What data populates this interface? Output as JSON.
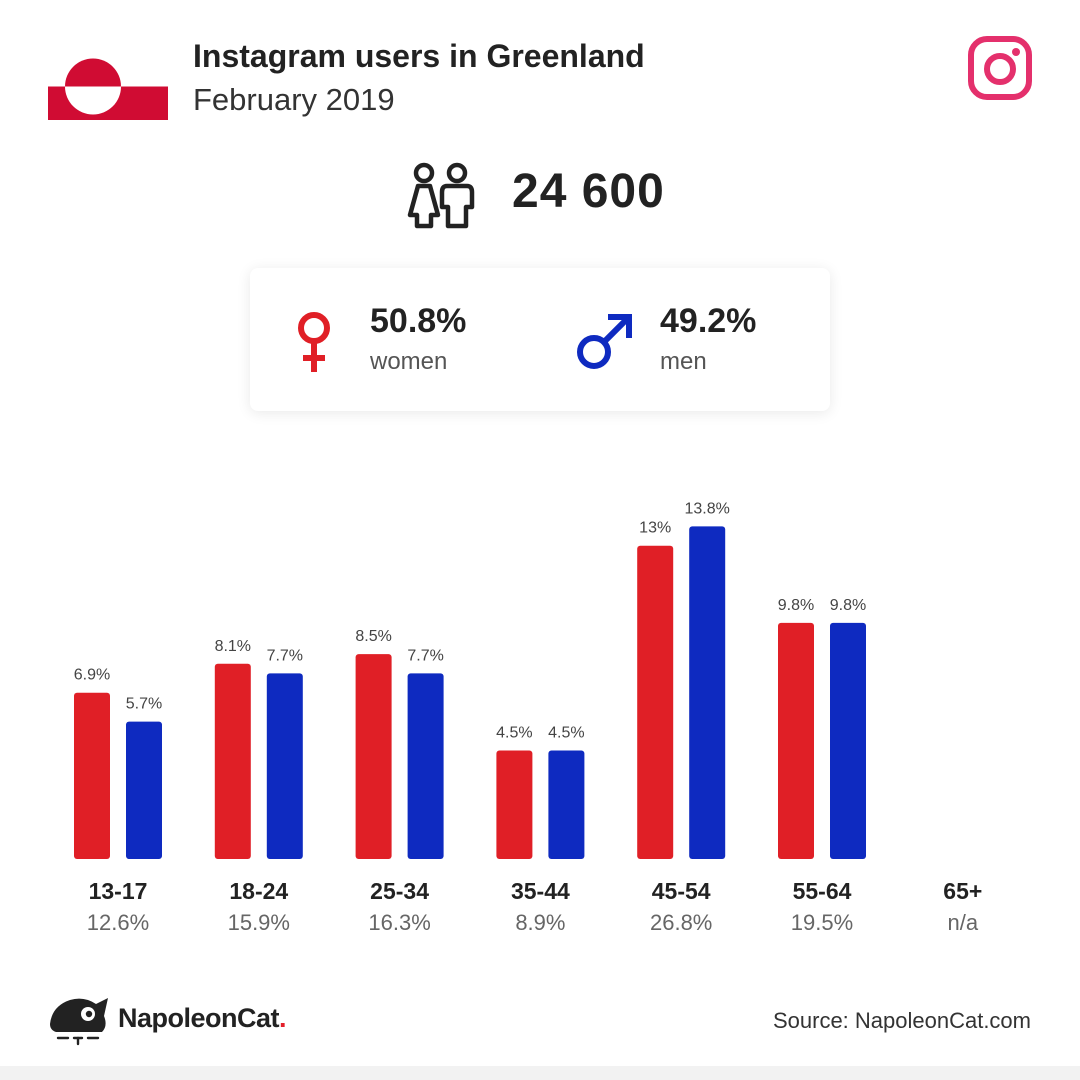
{
  "header": {
    "title": "Instagram users in Greenland",
    "subtitle": "February 2019"
  },
  "total": {
    "value": "24 600"
  },
  "gender": {
    "women": {
      "pct": "50.8%",
      "label": "women"
    },
    "men": {
      "pct": "49.2%",
      "label": "men"
    }
  },
  "colors": {
    "women": "#e01f26",
    "men": "#0e2ac0",
    "instagram": "#e4306c",
    "flag_red": "#d00c33"
  },
  "chart_data": {
    "type": "bar",
    "categories": [
      "13-17",
      "18-24",
      "25-34",
      "35-44",
      "45-54",
      "55-64",
      "65+"
    ],
    "category_totals": [
      "12.6%",
      "15.9%",
      "16.3%",
      "8.9%",
      "26.8%",
      "19.5%",
      "n/a"
    ],
    "series": [
      {
        "values": [
          6.9,
          8.1,
          8.5,
          4.5,
          13,
          9.8,
          null
        ],
        "labels": [
          "6.9%",
          "8.1%",
          "8.5%",
          "4.5%",
          "13%",
          "9.8%",
          ""
        ]
      },
      {
        "values": [
          5.7,
          7.7,
          7.7,
          4.5,
          13.8,
          9.8,
          null
        ],
        "labels": [
          "5.7%",
          "7.7%",
          "7.7%",
          "4.5%",
          "13.8%",
          "9.8%",
          ""
        ]
      }
    ],
    "grid": false
  },
  "footer": {
    "brand": "NapoleonCat",
    "brand_dot": ".",
    "source": "Source: NapoleonCat.com"
  }
}
